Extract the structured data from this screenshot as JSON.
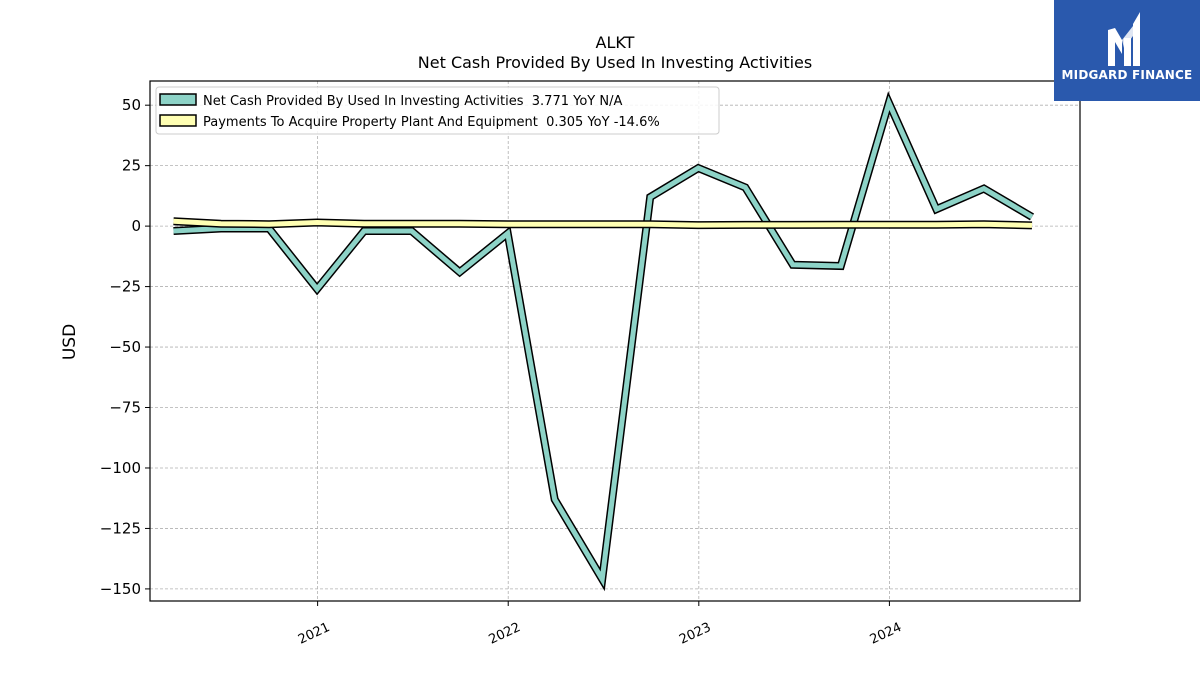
{
  "chart_data": {
    "type": "line",
    "title": "ALKT",
    "subtitle": "Net Cash Provided By Used In Investing Activities",
    "ylabel": "USD",
    "xlabel": "",
    "ylim": [
      -155,
      60
    ],
    "xlim": [
      "2020-02-15",
      "2024-12-31"
    ],
    "yticks": [
      50,
      25,
      0,
      -25,
      -50,
      -75,
      -100,
      -125,
      -150
    ],
    "ytick_labels": [
      "50",
      "25",
      "0",
      "−25",
      "−50",
      "−75",
      "−100",
      "−125",
      "−150"
    ],
    "xticks": [
      "2021-01-01",
      "2022-01-01",
      "2023-01-01",
      "2024-01-01"
    ],
    "xtick_labels": [
      "2021",
      "2022",
      "2023",
      "2024"
    ],
    "grid": true,
    "legend_position": "top-left",
    "series": [
      {
        "name": "Net Cash Provided By Used In Investing Activities  3.771 YoY N/A",
        "color": "#8dd3c7",
        "points": [
          [
            "2020-03-31",
            -2
          ],
          [
            "2020-06-30",
            -1
          ],
          [
            "2020-09-30",
            -1
          ],
          [
            "2020-12-31",
            -26
          ],
          [
            "2021-03-31",
            -2
          ],
          [
            "2021-06-30",
            -2
          ],
          [
            "2021-09-30",
            -19
          ],
          [
            "2021-12-31",
            -3
          ],
          [
            "2022-03-31",
            -113
          ],
          [
            "2022-06-30",
            -146
          ],
          [
            "2022-09-30",
            12
          ],
          [
            "2022-12-31",
            24
          ],
          [
            "2023-03-31",
            16
          ],
          [
            "2023-06-30",
            -16
          ],
          [
            "2023-09-30",
            -16.5
          ],
          [
            "2023-12-31",
            51
          ],
          [
            "2024-03-31",
            7
          ],
          [
            "2024-06-30",
            15.5
          ],
          [
            "2024-09-30",
            3.8
          ]
        ]
      },
      {
        "name": "Payments To Acquire Property Plant And Equipment  0.305 YoY -14.6%",
        "color": "#ffffb3",
        "points": [
          [
            "2020-03-31",
            2
          ],
          [
            "2020-06-30",
            1
          ],
          [
            "2020-09-30",
            0.8
          ],
          [
            "2020-12-31",
            1.5
          ],
          [
            "2021-03-31",
            1
          ],
          [
            "2021-06-30",
            1
          ],
          [
            "2021-09-30",
            1
          ],
          [
            "2021-12-31",
            0.8
          ],
          [
            "2022-03-31",
            0.8
          ],
          [
            "2022-06-30",
            0.8
          ],
          [
            "2022-09-30",
            0.8
          ],
          [
            "2022-12-31",
            0.4
          ],
          [
            "2023-03-31",
            0.5
          ],
          [
            "2023-06-30",
            0.5
          ],
          [
            "2023-09-30",
            0.6
          ],
          [
            "2023-12-31",
            0.6
          ],
          [
            "2024-03-31",
            0.6
          ],
          [
            "2024-06-30",
            0.8
          ],
          [
            "2024-09-30",
            0.3
          ]
        ]
      }
    ]
  },
  "logo": {
    "text": "MIDGARD FINANCE"
  }
}
